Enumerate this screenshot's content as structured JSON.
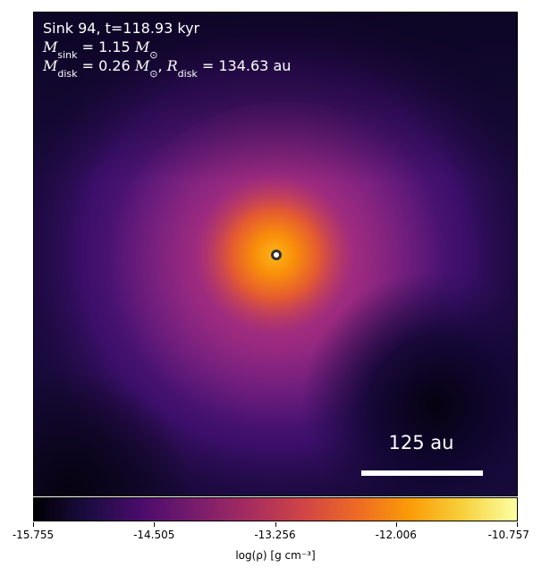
{
  "annotation": {
    "title": "Sink 94, t=118.93 kyr",
    "msink_symbol": "M",
    "msink_sub": "sink",
    "msink_value": " = 1.15 ",
    "mdisk_symbol": "M",
    "mdisk_sub": "disk",
    "mdisk_value": " = 0.26 ",
    "rdisk_symbol": "R",
    "rdisk_sub": "disk",
    "rdisk_value": " = 134.63 au",
    "solar_symbol": "M",
    "solar_sub": "⊙"
  },
  "scalebar": {
    "label": "125 au"
  },
  "colorbar": {
    "label": "log(ρ) [g cm⁻³]",
    "colormap": "inferno",
    "range": [
      -15.755,
      -10.757
    ],
    "ticks": [
      "-15.755",
      "-14.505",
      "-13.256",
      "-12.006",
      "-10.757"
    ]
  },
  "colors": {
    "background": "#05020f",
    "text": "#ffffff",
    "sink_marker": "#ffffff"
  }
}
